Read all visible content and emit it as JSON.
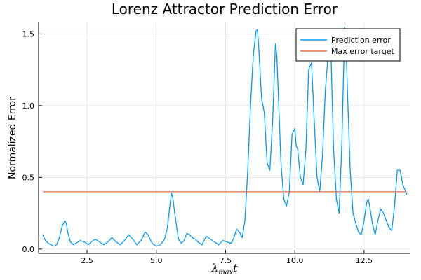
{
  "chart_data": {
    "type": "line",
    "title": "Lorenz Attractor Prediction Error",
    "ylabel": "Normalized Error",
    "xlabel": {
      "base": "λ",
      "sub": "max",
      "suffix": "t"
    },
    "xlim": [
      0.75,
      14.15
    ],
    "ylim": [
      -0.03,
      1.58
    ],
    "xticks": [
      2.5,
      5.0,
      7.5,
      10.0,
      12.5
    ],
    "xtick_labels": [
      "2.5",
      "5.0",
      "7.5",
      "10.0",
      "12.5"
    ],
    "yticks": [
      0.0,
      0.5,
      1.0,
      1.5
    ],
    "ytick_labels": [
      "0.0",
      "0.5",
      "1.0",
      "1.5"
    ],
    "grid": true,
    "legend_position": "top-right",
    "series": [
      {
        "name": "Prediction error",
        "color": "#009af9",
        "x": [
          0.9,
          1.0,
          1.1,
          1.2,
          1.3,
          1.4,
          1.5,
          1.6,
          1.7,
          1.75,
          1.8,
          1.9,
          2.0,
          2.1,
          2.25,
          2.4,
          2.55,
          2.65,
          2.8,
          2.95,
          3.1,
          3.25,
          3.4,
          3.55,
          3.7,
          3.85,
          4.0,
          4.15,
          4.3,
          4.45,
          4.6,
          4.7,
          4.85,
          5.0,
          5.15,
          5.3,
          5.4,
          5.5,
          5.55,
          5.6,
          5.7,
          5.8,
          5.9,
          6.0,
          6.1,
          6.2,
          6.3,
          6.4,
          6.5,
          6.65,
          6.8,
          6.95,
          7.1,
          7.25,
          7.4,
          7.55,
          7.7,
          7.8,
          7.9,
          8.0,
          8.1,
          8.2,
          8.3,
          8.4,
          8.5,
          8.6,
          8.65,
          8.7,
          8.8,
          8.9,
          9.0,
          9.1,
          9.2,
          9.3,
          9.35,
          9.4,
          9.5,
          9.6,
          9.7,
          9.8,
          9.9,
          10.0,
          10.05,
          10.1,
          10.2,
          10.3,
          10.4,
          10.5,
          10.6,
          10.7,
          10.8,
          10.9,
          11.0,
          11.1,
          11.2,
          11.3,
          11.4,
          11.5,
          11.6,
          11.7,
          11.8,
          11.85,
          11.9,
          12.0,
          12.1,
          12.2,
          12.3,
          12.4,
          12.5,
          12.6,
          12.65,
          12.7,
          12.8,
          12.9,
          13.0,
          13.1,
          13.2,
          13.3,
          13.4,
          13.5,
          13.6,
          13.7,
          13.8,
          13.9,
          14.0,
          14.05
        ],
        "y": [
          0.1,
          0.06,
          0.04,
          0.03,
          0.02,
          0.03,
          0.08,
          0.16,
          0.2,
          0.18,
          0.12,
          0.05,
          0.03,
          0.04,
          0.06,
          0.05,
          0.03,
          0.05,
          0.07,
          0.05,
          0.03,
          0.05,
          0.08,
          0.05,
          0.03,
          0.06,
          0.1,
          0.07,
          0.03,
          0.06,
          0.12,
          0.1,
          0.04,
          0.02,
          0.03,
          0.07,
          0.15,
          0.32,
          0.39,
          0.35,
          0.2,
          0.07,
          0.04,
          0.06,
          0.11,
          0.1,
          0.08,
          0.07,
          0.05,
          0.03,
          0.09,
          0.07,
          0.05,
          0.03,
          0.06,
          0.05,
          0.04,
          0.08,
          0.14,
          0.12,
          0.08,
          0.2,
          0.55,
          1.0,
          1.35,
          1.52,
          1.53,
          1.4,
          1.05,
          0.95,
          0.6,
          0.55,
          0.9,
          1.43,
          1.35,
          1.1,
          0.6,
          0.35,
          0.3,
          0.4,
          0.8,
          0.84,
          0.72,
          0.7,
          0.5,
          0.45,
          0.7,
          1.25,
          1.3,
          0.9,
          0.5,
          0.4,
          0.65,
          1.1,
          1.35,
          1.4,
          0.7,
          0.35,
          0.25,
          0.75,
          1.55,
          1.4,
          1.1,
          0.55,
          0.25,
          0.18,
          0.12,
          0.1,
          0.2,
          0.33,
          0.35,
          0.3,
          0.18,
          0.1,
          0.2,
          0.28,
          0.25,
          0.2,
          0.15,
          0.13,
          0.3,
          0.55,
          0.55,
          0.45,
          0.4,
          0.38
        ]
      },
      {
        "name": "Max error target",
        "color": "#e26f46",
        "x": [
          0.9,
          14.05
        ],
        "y": [
          0.4,
          0.4
        ]
      }
    ]
  }
}
